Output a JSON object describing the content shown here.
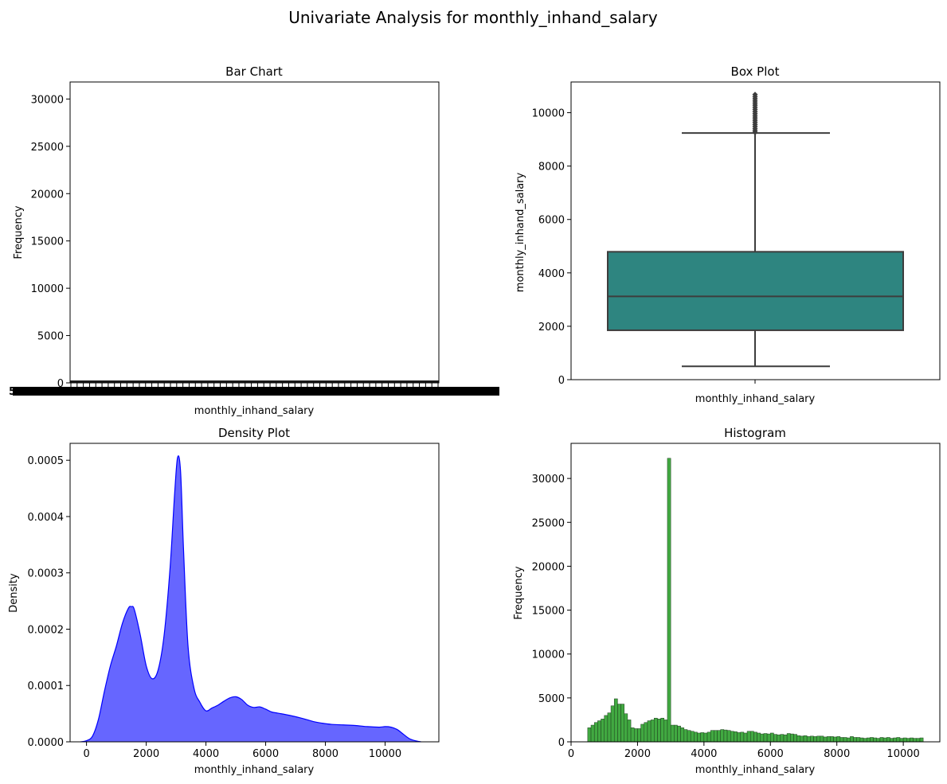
{
  "figure": {
    "suptitle": "Univariate Analysis for monthly_inhand_salary"
  },
  "chart_data": [
    {
      "type": "bar",
      "title": "Bar Chart",
      "xlabel": "monthly_inhand_salary",
      "ylabel": "Frequency",
      "ylim": [
        0,
        31800
      ],
      "yticks": [
        0,
        5000,
        10000,
        15000,
        20000,
        25000,
        30000
      ],
      "note_categories": "thousands of unique salary values; tick labels overlap into a solid black band",
      "overlapping_tick_fragment": "5",
      "bar_values_max": 150,
      "grid": false
    },
    {
      "type": "box",
      "title": "Box Plot",
      "xlabel": "monthly_inhand_salary",
      "ylabel": "monthly_inhand_salary",
      "ylim": [
        0,
        11150
      ],
      "yticks": [
        0,
        2000,
        4000,
        6000,
        8000,
        10000
      ],
      "whisker_low": 500,
      "q1": 1850,
      "median": 3120,
      "q3": 4790,
      "whisker_high": 9240,
      "outliers": [
        9260,
        9320,
        9400,
        9480,
        9560,
        9640,
        9720,
        9800,
        9880,
        9960,
        10040,
        10120,
        10200,
        10280,
        10360,
        10440,
        10520,
        10600,
        10680
      ],
      "box_color": "#2e8580",
      "grid": false
    },
    {
      "type": "area",
      "title": "Density Plot",
      "xlabel": "monthly_inhand_salary",
      "ylabel": "Density",
      "xlim": [
        -550,
        11800
      ],
      "ylim": [
        0,
        0.00053
      ],
      "xticks": [
        0,
        2000,
        4000,
        6000,
        8000,
        10000
      ],
      "yticks": [
        "0.0000",
        "0.0001",
        "0.0002",
        "0.0003",
        "0.0004",
        "0.0005"
      ],
      "x": [
        -200,
        0,
        200,
        400,
        600,
        800,
        1000,
        1200,
        1400,
        1500,
        1600,
        1800,
        2000,
        2200,
        2400,
        2600,
        2800,
        2950,
        3050,
        3150,
        3250,
        3400,
        3600,
        3800,
        4000,
        4200,
        4400,
        4600,
        4800,
        5000,
        5200,
        5400,
        5600,
        5800,
        6000,
        6200,
        6400,
        6800,
        7200,
        7600,
        7900,
        8200,
        8600,
        9000,
        9400,
        9800,
        10000,
        10200,
        10400,
        10600,
        10800,
        11000,
        11200
      ],
      "y": [
        0,
        2e-06,
        1e-05,
        4e-05,
        9e-05,
        0.000135,
        0.00017,
        0.00021,
        0.000237,
        0.00024,
        0.000235,
        0.00019,
        0.000135,
        0.000112,
        0.000128,
        0.00019,
        0.00031,
        0.00044,
        0.000505,
        0.00048,
        0.00034,
        0.00017,
        9.5e-05,
        7e-05,
        5.5e-05,
        6e-05,
        6.5e-05,
        7.2e-05,
        7.8e-05,
        8e-05,
        7.5e-05,
        6.5e-05,
        6.1e-05,
        6.2e-05,
        5.8e-05,
        5.3e-05,
        5.1e-05,
        4.7e-05,
        4.2e-05,
        3.6e-05,
        3.3e-05,
        3.1e-05,
        3e-05,
        2.9e-05,
        2.7e-05,
        2.6e-05,
        2.7e-05,
        2.6e-05,
        2.2e-05,
        1.4e-05,
        6e-06,
        2e-06,
        0
      ],
      "fill_color": "#6666ff",
      "line_color": "#0000ff",
      "grid": false
    },
    {
      "type": "bar",
      "subtype": "histogram",
      "title": "Histogram",
      "xlabel": "monthly_inhand_salary",
      "ylabel": "Frequency",
      "xlim": [
        0,
        11100
      ],
      "ylim": [
        0,
        34000
      ],
      "xticks": [
        0,
        2000,
        4000,
        6000,
        8000,
        10000
      ],
      "yticks": [
        0,
        5000,
        10000,
        15000,
        20000,
        25000,
        30000
      ],
      "bin_start": 500,
      "bin_width": 100,
      "values": [
        1600,
        1900,
        2200,
        2400,
        2600,
        3000,
        3300,
        4100,
        4900,
        4300,
        4300,
        3200,
        2500,
        1600,
        1500,
        1500,
        2000,
        2200,
        2400,
        2500,
        2700,
        2600,
        2700,
        2500,
        32300,
        1900,
        1900,
        1800,
        1600,
        1400,
        1300,
        1200,
        1100,
        1000,
        1050,
        1000,
        1100,
        1300,
        1300,
        1300,
        1400,
        1350,
        1300,
        1200,
        1150,
        1050,
        1100,
        1000,
        1200,
        1200,
        1100,
        1000,
        900,
        950,
        900,
        1000,
        850,
        800,
        850,
        800,
        950,
        900,
        850,
        700,
        650,
        700,
        600,
        650,
        600,
        650,
        650,
        550,
        600,
        600,
        550,
        600,
        500,
        500,
        450,
        600,
        500,
        500,
        450,
        400,
        450,
        500,
        450,
        400,
        500,
        450,
        500,
        400,
        450,
        500,
        400,
        450,
        400,
        450,
        400,
        400,
        450
      ],
      "bar_color": "#2ca02c",
      "grid": false
    }
  ]
}
